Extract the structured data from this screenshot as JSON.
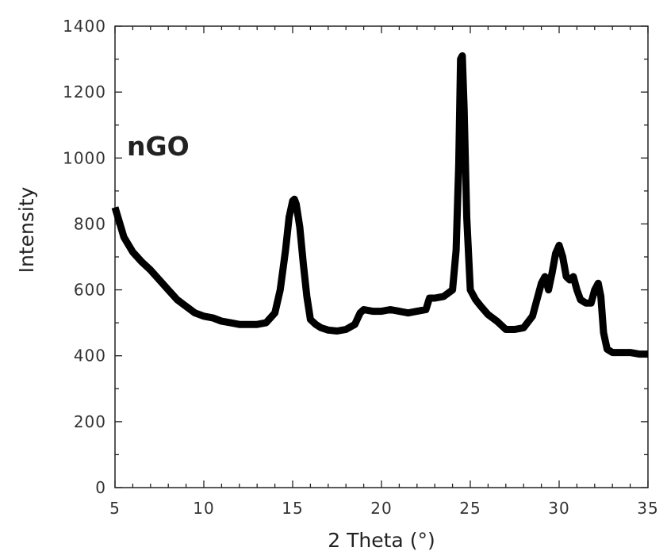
{
  "chart_data": {
    "type": "line",
    "title": "",
    "xlabel": "2 Theta (°)",
    "ylabel": "Intensity",
    "xlim": [
      5,
      35
    ],
    "ylim": [
      0,
      1400
    ],
    "x_ticks": [
      5,
      10,
      15,
      20,
      25,
      30,
      35
    ],
    "y_ticks": [
      0,
      200,
      400,
      600,
      800,
      1000,
      1200,
      1400
    ],
    "grid": false,
    "annotations": [
      {
        "text": "nGO"
      }
    ],
    "series": [
      {
        "color": "#000000",
        "x": [
          5.0,
          5.5,
          6.0,
          6.5,
          7.0,
          7.5,
          8.0,
          8.5,
          9.0,
          9.5,
          10.0,
          10.5,
          11.0,
          11.5,
          12.0,
          12.5,
          13.0,
          13.5,
          14.0,
          14.3,
          14.6,
          14.8,
          15.0,
          15.1,
          15.2,
          15.4,
          15.6,
          15.8,
          16.0,
          16.3,
          16.6,
          17.0,
          17.5,
          18.0,
          18.5,
          18.8,
          19.0,
          19.5,
          20.0,
          20.5,
          21.0,
          21.5,
          22.0,
          22.5,
          22.7,
          23.0,
          23.5,
          24.0,
          24.2,
          24.35,
          24.45,
          24.55,
          24.65,
          24.8,
          25.0,
          25.3,
          25.6,
          26.0,
          26.5,
          27.0,
          27.5,
          28.0,
          28.5,
          28.8,
          29.0,
          29.2,
          29.4,
          29.6,
          29.8,
          30.0,
          30.2,
          30.4,
          30.6,
          30.8,
          31.0,
          31.2,
          31.5,
          31.8,
          32.0,
          32.2,
          32.35,
          32.5,
          32.7,
          33.0,
          33.5,
          34.0,
          34.5,
          35.0
        ],
        "y": [
          850,
          760,
          715,
          685,
          660,
          630,
          600,
          570,
          550,
          530,
          520,
          515,
          505,
          500,
          495,
          495,
          495,
          500,
          530,
          600,
          720,
          820,
          870,
          875,
          860,
          790,
          680,
          580,
          510,
          495,
          485,
          478,
          475,
          480,
          495,
          530,
          540,
          535,
          535,
          540,
          535,
          530,
          535,
          540,
          575,
          575,
          580,
          600,
          720,
          980,
          1300,
          1310,
          1150,
          820,
          600,
          570,
          550,
          525,
          505,
          480,
          480,
          485,
          520,
          580,
          620,
          640,
          600,
          650,
          710,
          735,
          700,
          640,
          630,
          640,
          600,
          570,
          560,
          560,
          600,
          620,
          580,
          470,
          420,
          410,
          410,
          410,
          405,
          405
        ]
      }
    ]
  }
}
